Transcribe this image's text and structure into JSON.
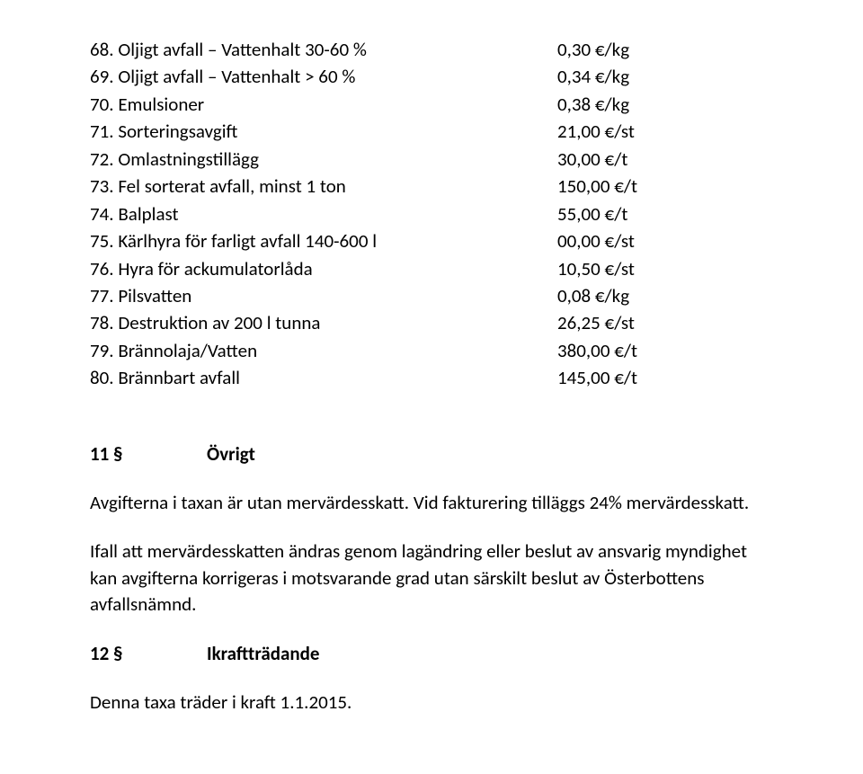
{
  "rows": [
    {
      "label": "68. Oljigt avfall – Vattenhalt 30-60 %",
      "value": "0,30 €/kg"
    },
    {
      "label": "69. Oljigt avfall – Vattenhalt > 60 %",
      "value": "0,34 €/kg"
    },
    {
      "label": "70. Emulsioner",
      "value": "0,38 €/kg"
    },
    {
      "label": "71. Sorteringsavgift",
      "value": "21,00 €/st"
    },
    {
      "label": "72. Omlastningstillägg",
      "value": "30,00 €/t"
    },
    {
      "label": "73. Fel sorterat avfall, minst 1 ton",
      "value": "150,00 €/t"
    },
    {
      "label": "74. Balplast",
      "value": "55,00 €/t"
    },
    {
      "label": "75. Kärlhyra för farligt avfall 140-600 l",
      "value": "00,00 €/st"
    },
    {
      "label": "76. Hyra för ackumulatorlåda",
      "value": "10,50 €/st"
    },
    {
      "label": "77. Pilsvatten",
      "value": "0,08 €/kg"
    },
    {
      "label": "78. Destruktion av 200 l tunna",
      "value": "26,25 €/st"
    },
    {
      "label": "79. Brännolaja/Vatten",
      "value": "380,00 €/t"
    },
    {
      "label": "80. Brännbart avfall",
      "value": "145,00 €/t"
    }
  ],
  "section11": {
    "num": "11 §",
    "title": "Övrigt"
  },
  "para1": "Avgifterna i taxan är utan mervärdesskatt. Vid fakturering tilläggs 24% mervärdesskatt.",
  "para2": "Ifall att mervärdesskatten ändras genom lagändring eller beslut av ansvarig myndighet kan avgifterna korrigeras i motsvarande grad utan särskilt beslut av Österbottens avfallsnämnd.",
  "section12": {
    "num": "12 §",
    "title": "Ikraftträdande"
  },
  "para3": "Denna taxa träder i kraft 1.1.2015."
}
